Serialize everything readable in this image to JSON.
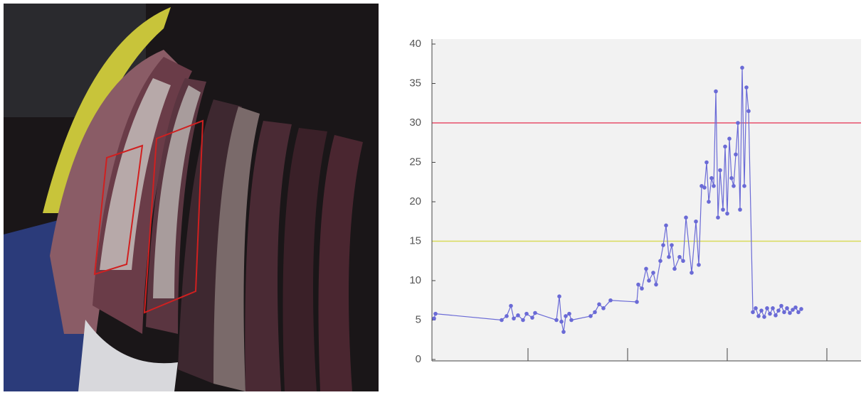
{
  "chart_data": {
    "type": "line",
    "x": [
      3,
      5,
      98,
      105,
      111,
      115,
      121,
      128,
      133,
      141,
      145,
      175,
      179,
      182,
      185,
      188,
      193,
      196,
      223,
      229,
      235,
      241,
      251,
      288,
      290,
      295,
      301,
      305,
      311,
      315,
      321,
      325,
      329,
      333,
      337,
      341,
      348,
      353,
      357,
      365,
      371,
      375,
      379,
      383,
      386,
      389,
      393,
      396,
      399,
      402,
      405,
      409,
      412,
      415,
      418,
      421,
      424,
      427,
      430,
      433,
      436,
      439,
      442,
      445,
      451,
      455,
      459,
      463,
      467,
      471,
      475,
      479,
      483,
      487,
      491,
      495,
      499,
      503,
      507,
      511,
      515,
      519
    ],
    "values": [
      5.2,
      5.8,
      5,
      5.5,
      6.8,
      5.2,
      5.6,
      5,
      5.8,
      5.3,
      5.9,
      5,
      8,
      4.8,
      3.5,
      5.5,
      5.8,
      5,
      5.5,
      6,
      7,
      6.5,
      7.5,
      7.3,
      9.5,
      9,
      11.5,
      10,
      11,
      9.5,
      12.5,
      14.5,
      17,
      13,
      14.5,
      11.5,
      13,
      12.5,
      18,
      11,
      17.5,
      12,
      22,
      21.8,
      25,
      20,
      23,
      22,
      34,
      18,
      24,
      19,
      27,
      18.5,
      28,
      23,
      22,
      26,
      30,
      19,
      37,
      22,
      34.5,
      31.5,
      6,
      6.5,
      5.5,
      6.2,
      5.4,
      6.5,
      5.8,
      6.5,
      5.6,
      6.2,
      6.8,
      6,
      6.5,
      5.9,
      6.3,
      6.6,
      6,
      6.4
    ],
    "color": "#6a6ad6",
    "xlim": [
      0,
      603
    ],
    "ylim": [
      0,
      40
    ],
    "yticks": [
      0,
      5,
      10,
      15,
      20,
      25,
      30,
      35,
      40
    ],
    "thresholds": [
      {
        "value": 30,
        "color": "#e8506a"
      },
      {
        "value": 15,
        "color": "#d8dc5a"
      }
    ]
  }
}
